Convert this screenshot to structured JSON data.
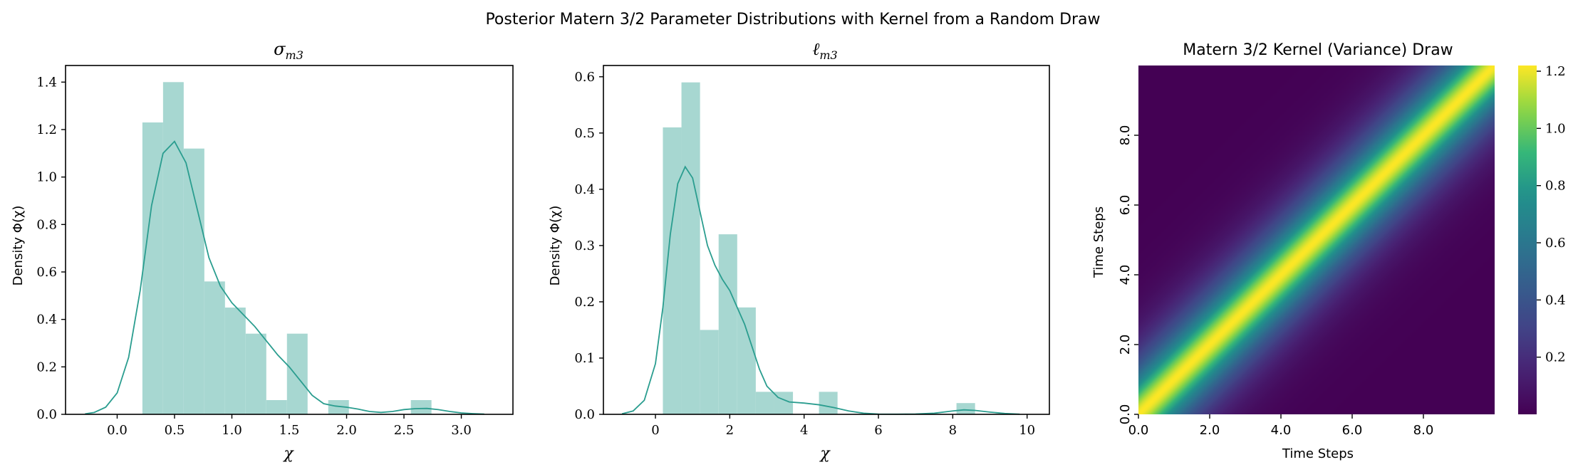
{
  "figure": {
    "suptitle": "Posterior Matern 3/2 Parameter Distributions with Kernel from a Random Draw"
  },
  "colors": {
    "hist": "#a7d7d1",
    "kde": "#2a9d8f"
  },
  "chart_data": [
    {
      "type": "bar",
      "subtype": "histogram_with_kde",
      "title": "σm3",
      "title_main": "σ",
      "title_sub": "m3",
      "xlabel": "χ",
      "ylabel": "Density Φ(χ)",
      "xlim": [
        -0.45,
        3.45
      ],
      "ylim": [
        0,
        1.47
      ],
      "xticks": [
        0.0,
        0.5,
        1.0,
        1.5,
        2.0,
        2.5,
        3.0
      ],
      "xtick_labels": [
        "0.0",
        "0.5",
        "1.0",
        "1.5",
        "2.0",
        "2.5",
        "3.0"
      ],
      "yticks": [
        0.0,
        0.2,
        0.4,
        0.6,
        0.8,
        1.0,
        1.2,
        1.4
      ],
      "ytick_labels": [
        "0.0",
        "0.2",
        "0.4",
        "0.6",
        "0.8",
        "1.0",
        "1.2",
        "1.4"
      ],
      "bins": [
        {
          "x0": 0.22,
          "x1": 0.4,
          "h": 1.23
        },
        {
          "x0": 0.4,
          "x1": 0.58,
          "h": 1.4
        },
        {
          "x0": 0.58,
          "x1": 0.76,
          "h": 1.12
        },
        {
          "x0": 0.76,
          "x1": 0.94,
          "h": 0.56
        },
        {
          "x0": 0.94,
          "x1": 1.12,
          "h": 0.45
        },
        {
          "x0": 1.12,
          "x1": 1.3,
          "h": 0.34
        },
        {
          "x0": 1.3,
          "x1": 1.48,
          "h": 0.06
        },
        {
          "x0": 1.48,
          "x1": 1.66,
          "h": 0.34
        },
        {
          "x0": 1.66,
          "x1": 1.84,
          "h": 0.0
        },
        {
          "x0": 1.84,
          "x1": 2.02,
          "h": 0.06
        },
        {
          "x0": 2.02,
          "x1": 2.2,
          "h": 0.0
        },
        {
          "x0": 2.2,
          "x1": 2.38,
          "h": 0.0
        },
        {
          "x0": 2.38,
          "x1": 2.56,
          "h": 0.0
        },
        {
          "x0": 2.56,
          "x1": 2.74,
          "h": 0.06
        }
      ],
      "kde": {
        "x": [
          -0.28,
          -0.2,
          -0.1,
          0.0,
          0.1,
          0.2,
          0.3,
          0.4,
          0.5,
          0.6,
          0.7,
          0.8,
          0.9,
          1.0,
          1.1,
          1.2,
          1.3,
          1.4,
          1.5,
          1.6,
          1.7,
          1.8,
          1.9,
          2.0,
          2.1,
          2.2,
          2.3,
          2.4,
          2.5,
          2.6,
          2.7,
          2.8,
          2.9,
          3.0,
          3.1,
          3.2
        ],
        "y": [
          0.002,
          0.008,
          0.03,
          0.09,
          0.24,
          0.52,
          0.88,
          1.1,
          1.15,
          1.06,
          0.86,
          0.66,
          0.54,
          0.47,
          0.42,
          0.37,
          0.31,
          0.25,
          0.2,
          0.14,
          0.08,
          0.045,
          0.035,
          0.03,
          0.022,
          0.012,
          0.008,
          0.012,
          0.02,
          0.024,
          0.025,
          0.02,
          0.012,
          0.006,
          0.003,
          0.001
        ]
      }
    },
    {
      "type": "bar",
      "subtype": "histogram_with_kde",
      "title": "ℓm3",
      "title_main": "ℓ",
      "title_sub": "m3",
      "xlabel": "χ",
      "ylabel": "Density Φ(χ)",
      "xlim": [
        -1.4,
        10.6
      ],
      "ylim": [
        0,
        0.62
      ],
      "xticks": [
        0,
        2,
        4,
        6,
        8,
        10
      ],
      "xtick_labels": [
        "0",
        "2",
        "4",
        "6",
        "8",
        "10"
      ],
      "yticks": [
        0.0,
        0.1,
        0.2,
        0.3,
        0.4,
        0.5,
        0.6
      ],
      "ytick_labels": [
        "0.0",
        "0.1",
        "0.2",
        "0.3",
        "0.4",
        "0.5",
        "0.6"
      ],
      "bins": [
        {
          "x0": 0.2,
          "x1": 0.7,
          "h": 0.51
        },
        {
          "x0": 0.7,
          "x1": 1.2,
          "h": 0.59
        },
        {
          "x0": 1.2,
          "x1": 1.7,
          "h": 0.15
        },
        {
          "x0": 1.7,
          "x1": 2.2,
          "h": 0.32
        },
        {
          "x0": 2.2,
          "x1": 2.7,
          "h": 0.19
        },
        {
          "x0": 2.7,
          "x1": 3.2,
          "h": 0.04
        },
        {
          "x0": 3.2,
          "x1": 3.7,
          "h": 0.04
        },
        {
          "x0": 4.4,
          "x1": 4.9,
          "h": 0.04
        },
        {
          "x0": 8.1,
          "x1": 8.6,
          "h": 0.02
        }
      ],
      "kde": {
        "x": [
          -0.9,
          -0.6,
          -0.3,
          0.0,
          0.2,
          0.4,
          0.6,
          0.8,
          1.0,
          1.2,
          1.4,
          1.6,
          1.8,
          2.0,
          2.2,
          2.4,
          2.6,
          2.8,
          3.0,
          3.3,
          3.6,
          4.0,
          4.4,
          4.8,
          5.2,
          5.6,
          6.0,
          6.5,
          7.0,
          7.5,
          8.0,
          8.3,
          8.6,
          9.0,
          9.4,
          9.8
        ],
        "y": [
          0.001,
          0.006,
          0.025,
          0.09,
          0.19,
          0.32,
          0.41,
          0.44,
          0.42,
          0.36,
          0.3,
          0.265,
          0.24,
          0.22,
          0.19,
          0.16,
          0.12,
          0.08,
          0.05,
          0.03,
          0.022,
          0.02,
          0.017,
          0.012,
          0.006,
          0.002,
          0.0005,
          0.0003,
          0.0006,
          0.002,
          0.006,
          0.008,
          0.007,
          0.004,
          0.0015,
          0.0003
        ]
      }
    },
    {
      "type": "heatmap",
      "title": "Matern 3/2 Kernel (Variance) Draw",
      "xlabel": "Time Steps",
      "ylabel": "Time Steps",
      "xlim": [
        0,
        10
      ],
      "ylim": [
        0,
        10
      ],
      "xticks": [
        0.0,
        2.0,
        4.0,
        6.0,
        8.0
      ],
      "xtick_labels": [
        "0.0",
        "2.0",
        "4.0",
        "6.0",
        "8.0"
      ],
      "yticks": [
        0.0,
        2.0,
        4.0,
        6.0,
        8.0
      ],
      "ytick_labels": [
        "0.0",
        "2.0",
        "4.0",
        "6.0",
        "8.0"
      ],
      "kernel": {
        "variance": 1.22,
        "lengthscale": 1.1
      },
      "colormap": "viridis",
      "colorbar": {
        "vmin": 0.0,
        "vmax": 1.22,
        "ticks": [
          0.2,
          0.4,
          0.6,
          0.8,
          1.0,
          1.2
        ],
        "tick_labels": [
          "0.2",
          "0.4",
          "0.6",
          "0.8",
          "1.0",
          "1.2"
        ]
      }
    }
  ]
}
